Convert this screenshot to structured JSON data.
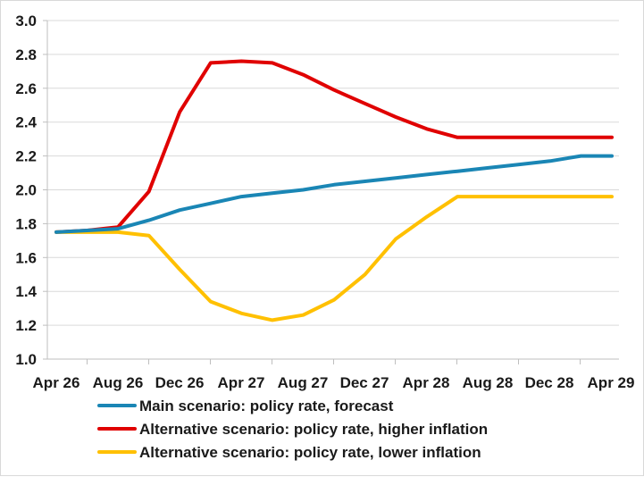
{
  "chart_data": {
    "type": "line",
    "x": [
      "Apr 26",
      "Jun 26",
      "Aug 26",
      "Oct 26",
      "Dec 26",
      "Feb 27",
      "Apr 27",
      "Jun 27",
      "Aug 27",
      "Oct 27",
      "Dec 27",
      "Feb 28",
      "Apr 28",
      "Jun 28",
      "Aug 28",
      "Oct 28",
      "Dec 28",
      "Feb 29",
      "Apr 29"
    ],
    "x_tick_labels": [
      "Apr 26",
      "Aug 26",
      "Dec 26",
      "Apr 27",
      "Aug 27",
      "Dec 27",
      "Apr 28",
      "Aug 28",
      "Dec 28",
      "Apr 29"
    ],
    "y_tick_labels": [
      "1.0",
      "1.2",
      "1.4",
      "1.6",
      "1.8",
      "2.0",
      "2.2",
      "2.4",
      "2.6",
      "2.8",
      "3.0"
    ],
    "ylim": [
      1.0,
      3.0
    ],
    "grid": "horizontal",
    "legend_position": "bottom",
    "series": [
      {
        "name": "Main scenario: policy rate, forecast",
        "color": "#1a86b5",
        "values": [
          1.75,
          1.76,
          1.77,
          1.82,
          1.88,
          1.92,
          1.96,
          1.98,
          2.0,
          2.03,
          2.05,
          2.07,
          2.09,
          2.11,
          2.13,
          2.15,
          2.17,
          2.2,
          2.2
        ]
      },
      {
        "name": "Alternative scenario: policy rate, higher inflation",
        "color": "#e00000",
        "values": [
          1.75,
          1.76,
          1.78,
          1.99,
          2.46,
          2.75,
          2.76,
          2.75,
          2.68,
          2.59,
          2.51,
          2.43,
          2.36,
          2.31,
          2.31,
          2.31,
          2.31,
          2.31,
          2.31
        ]
      },
      {
        "name": "Alternative scenario: policy rate, lower inflation",
        "color": "#ffc000",
        "values": [
          1.75,
          1.75,
          1.75,
          1.73,
          1.53,
          1.34,
          1.27,
          1.23,
          1.26,
          1.35,
          1.5,
          1.71,
          1.84,
          1.96,
          1.96,
          1.96,
          1.96,
          1.96,
          1.96
        ]
      }
    ]
  }
}
